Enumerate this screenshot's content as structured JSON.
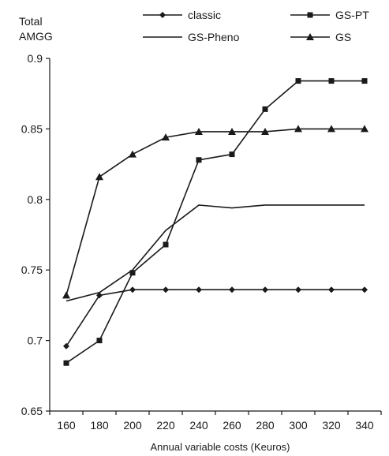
{
  "chart_data": {
    "type": "line",
    "ylabel_lines": [
      "Total",
      "AMGG"
    ],
    "xlabel": "Annual variable costs (Keuros)",
    "x": [
      160,
      180,
      200,
      220,
      240,
      260,
      280,
      300,
      320,
      340
    ],
    "xlim": [
      150,
      350
    ],
    "ylim": [
      0.65,
      0.9
    ],
    "yticks": [
      0.65,
      0.7,
      0.75,
      0.8,
      0.85,
      0.9
    ],
    "ytick_labels": [
      "0.65",
      "0.7",
      "0.75",
      "0.8",
      "0.85",
      "0.9"
    ],
    "grid": false,
    "legend_position": "top",
    "series": [
      {
        "name": "classic",
        "marker": "diamond",
        "color": "#1a1a1a",
        "values": [
          0.696,
          0.732,
          0.736,
          0.736,
          0.736,
          0.736,
          0.736,
          0.736,
          0.736,
          0.736
        ]
      },
      {
        "name": "GS-PT",
        "marker": "square",
        "color": "#1a1a1a",
        "values": [
          0.684,
          0.7,
          0.748,
          0.768,
          0.828,
          0.832,
          0.864,
          0.884,
          0.884,
          0.884
        ]
      },
      {
        "name": "GS-Pheno",
        "marker": "none",
        "color": "#1a1a1a",
        "values": [
          0.728,
          0.734,
          0.75,
          0.778,
          0.796,
          0.794,
          0.796,
          0.796,
          0.796,
          0.796
        ]
      },
      {
        "name": "GS",
        "marker": "triangle",
        "color": "#1a1a1a",
        "values": [
          0.732,
          0.816,
          0.832,
          0.844,
          0.848,
          0.848,
          0.848,
          0.85,
          0.85,
          0.85
        ]
      }
    ]
  }
}
